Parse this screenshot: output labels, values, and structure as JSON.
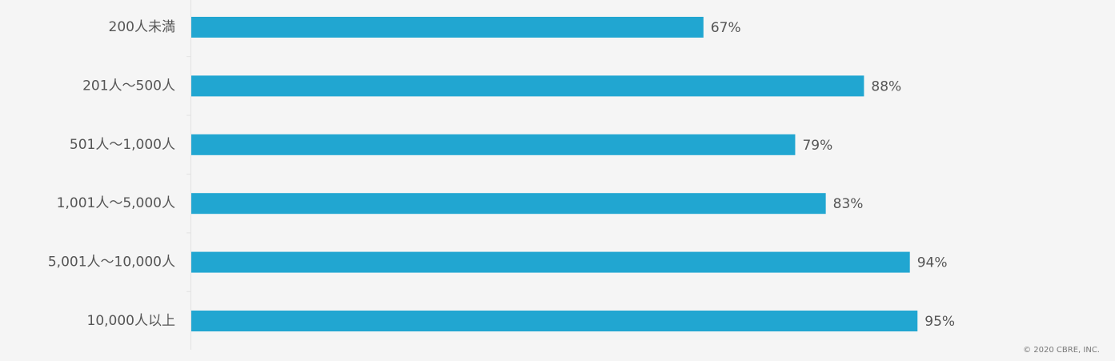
{
  "chart_data": {
    "type": "bar",
    "orientation": "horizontal",
    "categories": [
      "200人未満",
      "201人～500人",
      "501人～1,000人",
      "1,001人～5,000人",
      "5,001人～10,000人",
      "10,000人以上"
    ],
    "values": [
      67,
      88,
      79,
      83,
      94,
      95
    ],
    "value_labels": [
      "67%",
      "88%",
      "79%",
      "83%",
      "94%",
      "95%"
    ],
    "color": "#21a6d1",
    "source": "© 2020 CBRE, INC."
  }
}
